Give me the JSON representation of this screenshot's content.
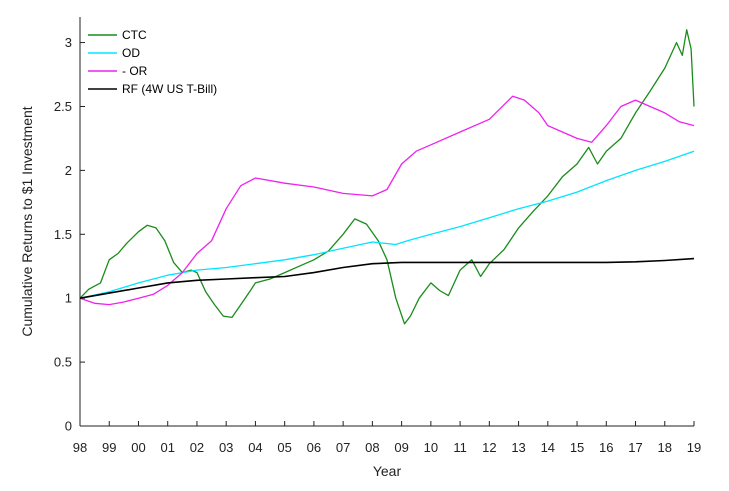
{
  "chart_data": {
    "type": "line",
    "title": "",
    "xlabel": "Year",
    "ylabel": "Cumulative Returns to $1 Investment",
    "xlim": [
      1998,
      2019
    ],
    "ylim": [
      0,
      3.2
    ],
    "x_ticks": [
      {
        "value": 1998,
        "label": "98"
      },
      {
        "value": 1999,
        "label": "99"
      },
      {
        "value": 2000,
        "label": "00"
      },
      {
        "value": 2001,
        "label": "01"
      },
      {
        "value": 2002,
        "label": "02"
      },
      {
        "value": 2003,
        "label": "03"
      },
      {
        "value": 2004,
        "label": "04"
      },
      {
        "value": 2005,
        "label": "05"
      },
      {
        "value": 2006,
        "label": "06"
      },
      {
        "value": 2007,
        "label": "07"
      },
      {
        "value": 2008,
        "label": "08"
      },
      {
        "value": 2009,
        "label": "09"
      },
      {
        "value": 2010,
        "label": "10"
      },
      {
        "value": 2011,
        "label": "11"
      },
      {
        "value": 2012,
        "label": "12"
      },
      {
        "value": 2013,
        "label": "13"
      },
      {
        "value": 2014,
        "label": "14"
      },
      {
        "value": 2015,
        "label": "15"
      },
      {
        "value": 2016,
        "label": "16"
      },
      {
        "value": 2017,
        "label": "17"
      },
      {
        "value": 2018,
        "label": "18"
      },
      {
        "value": 2019,
        "label": "19"
      }
    ],
    "y_ticks": [
      {
        "value": 0,
        "label": "0"
      },
      {
        "value": 0.5,
        "label": "0.5"
      },
      {
        "value": 1,
        "label": "1"
      },
      {
        "value": 1.5,
        "label": "1.5"
      },
      {
        "value": 2,
        "label": "2"
      },
      {
        "value": 2.5,
        "label": "2.5"
      },
      {
        "value": 3,
        "label": "3"
      }
    ],
    "grid": false,
    "legend_position": "top-left",
    "series": [
      {
        "name": "CTC",
        "color": "#1a8c1a",
        "points": [
          [
            1998.0,
            1.0
          ],
          [
            1998.3,
            1.07
          ],
          [
            1998.7,
            1.12
          ],
          [
            1999.0,
            1.3
          ],
          [
            1999.3,
            1.35
          ],
          [
            1999.6,
            1.43
          ],
          [
            2000.0,
            1.52
          ],
          [
            2000.3,
            1.57
          ],
          [
            2000.6,
            1.55
          ],
          [
            2000.9,
            1.45
          ],
          [
            2001.2,
            1.28
          ],
          [
            2001.5,
            1.2
          ],
          [
            2001.8,
            1.22
          ],
          [
            2002.0,
            1.2
          ],
          [
            2002.3,
            1.05
          ],
          [
            2002.6,
            0.95
          ],
          [
            2002.9,
            0.86
          ],
          [
            2003.2,
            0.85
          ],
          [
            2003.5,
            0.95
          ],
          [
            2003.8,
            1.05
          ],
          [
            2004.0,
            1.12
          ],
          [
            2004.5,
            1.15
          ],
          [
            2005.0,
            1.2
          ],
          [
            2005.5,
            1.25
          ],
          [
            2006.0,
            1.3
          ],
          [
            2006.5,
            1.37
          ],
          [
            2007.0,
            1.5
          ],
          [
            2007.4,
            1.62
          ],
          [
            2007.8,
            1.58
          ],
          [
            2008.2,
            1.45
          ],
          [
            2008.5,
            1.3
          ],
          [
            2008.8,
            1.0
          ],
          [
            2009.1,
            0.8
          ],
          [
            2009.3,
            0.86
          ],
          [
            2009.6,
            1.0
          ],
          [
            2010.0,
            1.12
          ],
          [
            2010.3,
            1.06
          ],
          [
            2010.6,
            1.02
          ],
          [
            2011.0,
            1.22
          ],
          [
            2011.4,
            1.3
          ],
          [
            2011.7,
            1.17
          ],
          [
            2012.0,
            1.27
          ],
          [
            2012.5,
            1.38
          ],
          [
            2013.0,
            1.55
          ],
          [
            2013.5,
            1.68
          ],
          [
            2014.0,
            1.8
          ],
          [
            2014.5,
            1.95
          ],
          [
            2015.0,
            2.05
          ],
          [
            2015.4,
            2.18
          ],
          [
            2015.7,
            2.05
          ],
          [
            2016.0,
            2.15
          ],
          [
            2016.5,
            2.25
          ],
          [
            2017.0,
            2.45
          ],
          [
            2017.5,
            2.62
          ],
          [
            2018.0,
            2.8
          ],
          [
            2018.4,
            3.0
          ],
          [
            2018.6,
            2.9
          ],
          [
            2018.75,
            3.1
          ],
          [
            2018.9,
            2.95
          ],
          [
            2019.0,
            2.5
          ]
        ]
      },
      {
        "name": "OD",
        "color": "#00e5ff",
        "points": [
          [
            1998.0,
            1.0
          ],
          [
            1999.0,
            1.05
          ],
          [
            2000.0,
            1.12
          ],
          [
            2001.0,
            1.18
          ],
          [
            2002.0,
            1.22
          ],
          [
            2003.0,
            1.24
          ],
          [
            2004.0,
            1.27
          ],
          [
            2005.0,
            1.3
          ],
          [
            2006.0,
            1.34
          ],
          [
            2007.0,
            1.39
          ],
          [
            2008.0,
            1.44
          ],
          [
            2008.8,
            1.42
          ],
          [
            2009.2,
            1.45
          ],
          [
            2010.0,
            1.5
          ],
          [
            2011.0,
            1.56
          ],
          [
            2012.0,
            1.63
          ],
          [
            2013.0,
            1.7
          ],
          [
            2014.0,
            1.76
          ],
          [
            2015.0,
            1.83
          ],
          [
            2016.0,
            1.92
          ],
          [
            2017.0,
            2.0
          ],
          [
            2018.0,
            2.07
          ],
          [
            2019.0,
            2.15
          ]
        ]
      },
      {
        "name": " - OR",
        "color": "#ee22ee",
        "points": [
          [
            1998.0,
            1.0
          ],
          [
            1998.5,
            0.96
          ],
          [
            1999.0,
            0.95
          ],
          [
            1999.5,
            0.97
          ],
          [
            2000.0,
            1.0
          ],
          [
            2000.5,
            1.03
          ],
          [
            2001.0,
            1.1
          ],
          [
            2001.5,
            1.2
          ],
          [
            2002.0,
            1.35
          ],
          [
            2002.5,
            1.45
          ],
          [
            2003.0,
            1.7
          ],
          [
            2003.5,
            1.88
          ],
          [
            2004.0,
            1.94
          ],
          [
            2005.0,
            1.9
          ],
          [
            2006.0,
            1.87
          ],
          [
            2007.0,
            1.82
          ],
          [
            2008.0,
            1.8
          ],
          [
            2008.5,
            1.85
          ],
          [
            2009.0,
            2.05
          ],
          [
            2009.5,
            2.15
          ],
          [
            2010.0,
            2.2
          ],
          [
            2011.0,
            2.3
          ],
          [
            2012.0,
            2.4
          ],
          [
            2012.8,
            2.58
          ],
          [
            2013.2,
            2.55
          ],
          [
            2013.7,
            2.45
          ],
          [
            2014.0,
            2.35
          ],
          [
            2014.5,
            2.3
          ],
          [
            2015.0,
            2.25
          ],
          [
            2015.5,
            2.22
          ],
          [
            2016.0,
            2.35
          ],
          [
            2016.5,
            2.5
          ],
          [
            2017.0,
            2.55
          ],
          [
            2017.5,
            2.5
          ],
          [
            2018.0,
            2.45
          ],
          [
            2018.5,
            2.38
          ],
          [
            2019.0,
            2.35
          ]
        ]
      },
      {
        "name": "RF (4W US T-Bill)",
        "color": "#000000",
        "points": [
          [
            1998.0,
            1.0
          ],
          [
            1999.0,
            1.04
          ],
          [
            2000.0,
            1.08
          ],
          [
            2001.0,
            1.12
          ],
          [
            2002.0,
            1.14
          ],
          [
            2003.0,
            1.15
          ],
          [
            2004.0,
            1.16
          ],
          [
            2005.0,
            1.17
          ],
          [
            2006.0,
            1.2
          ],
          [
            2007.0,
            1.24
          ],
          [
            2008.0,
            1.27
          ],
          [
            2009.0,
            1.28
          ],
          [
            2010.0,
            1.28
          ],
          [
            2012.0,
            1.28
          ],
          [
            2014.0,
            1.28
          ],
          [
            2016.0,
            1.28
          ],
          [
            2017.0,
            1.285
          ],
          [
            2018.0,
            1.295
          ],
          [
            2019.0,
            1.31
          ]
        ]
      }
    ]
  }
}
